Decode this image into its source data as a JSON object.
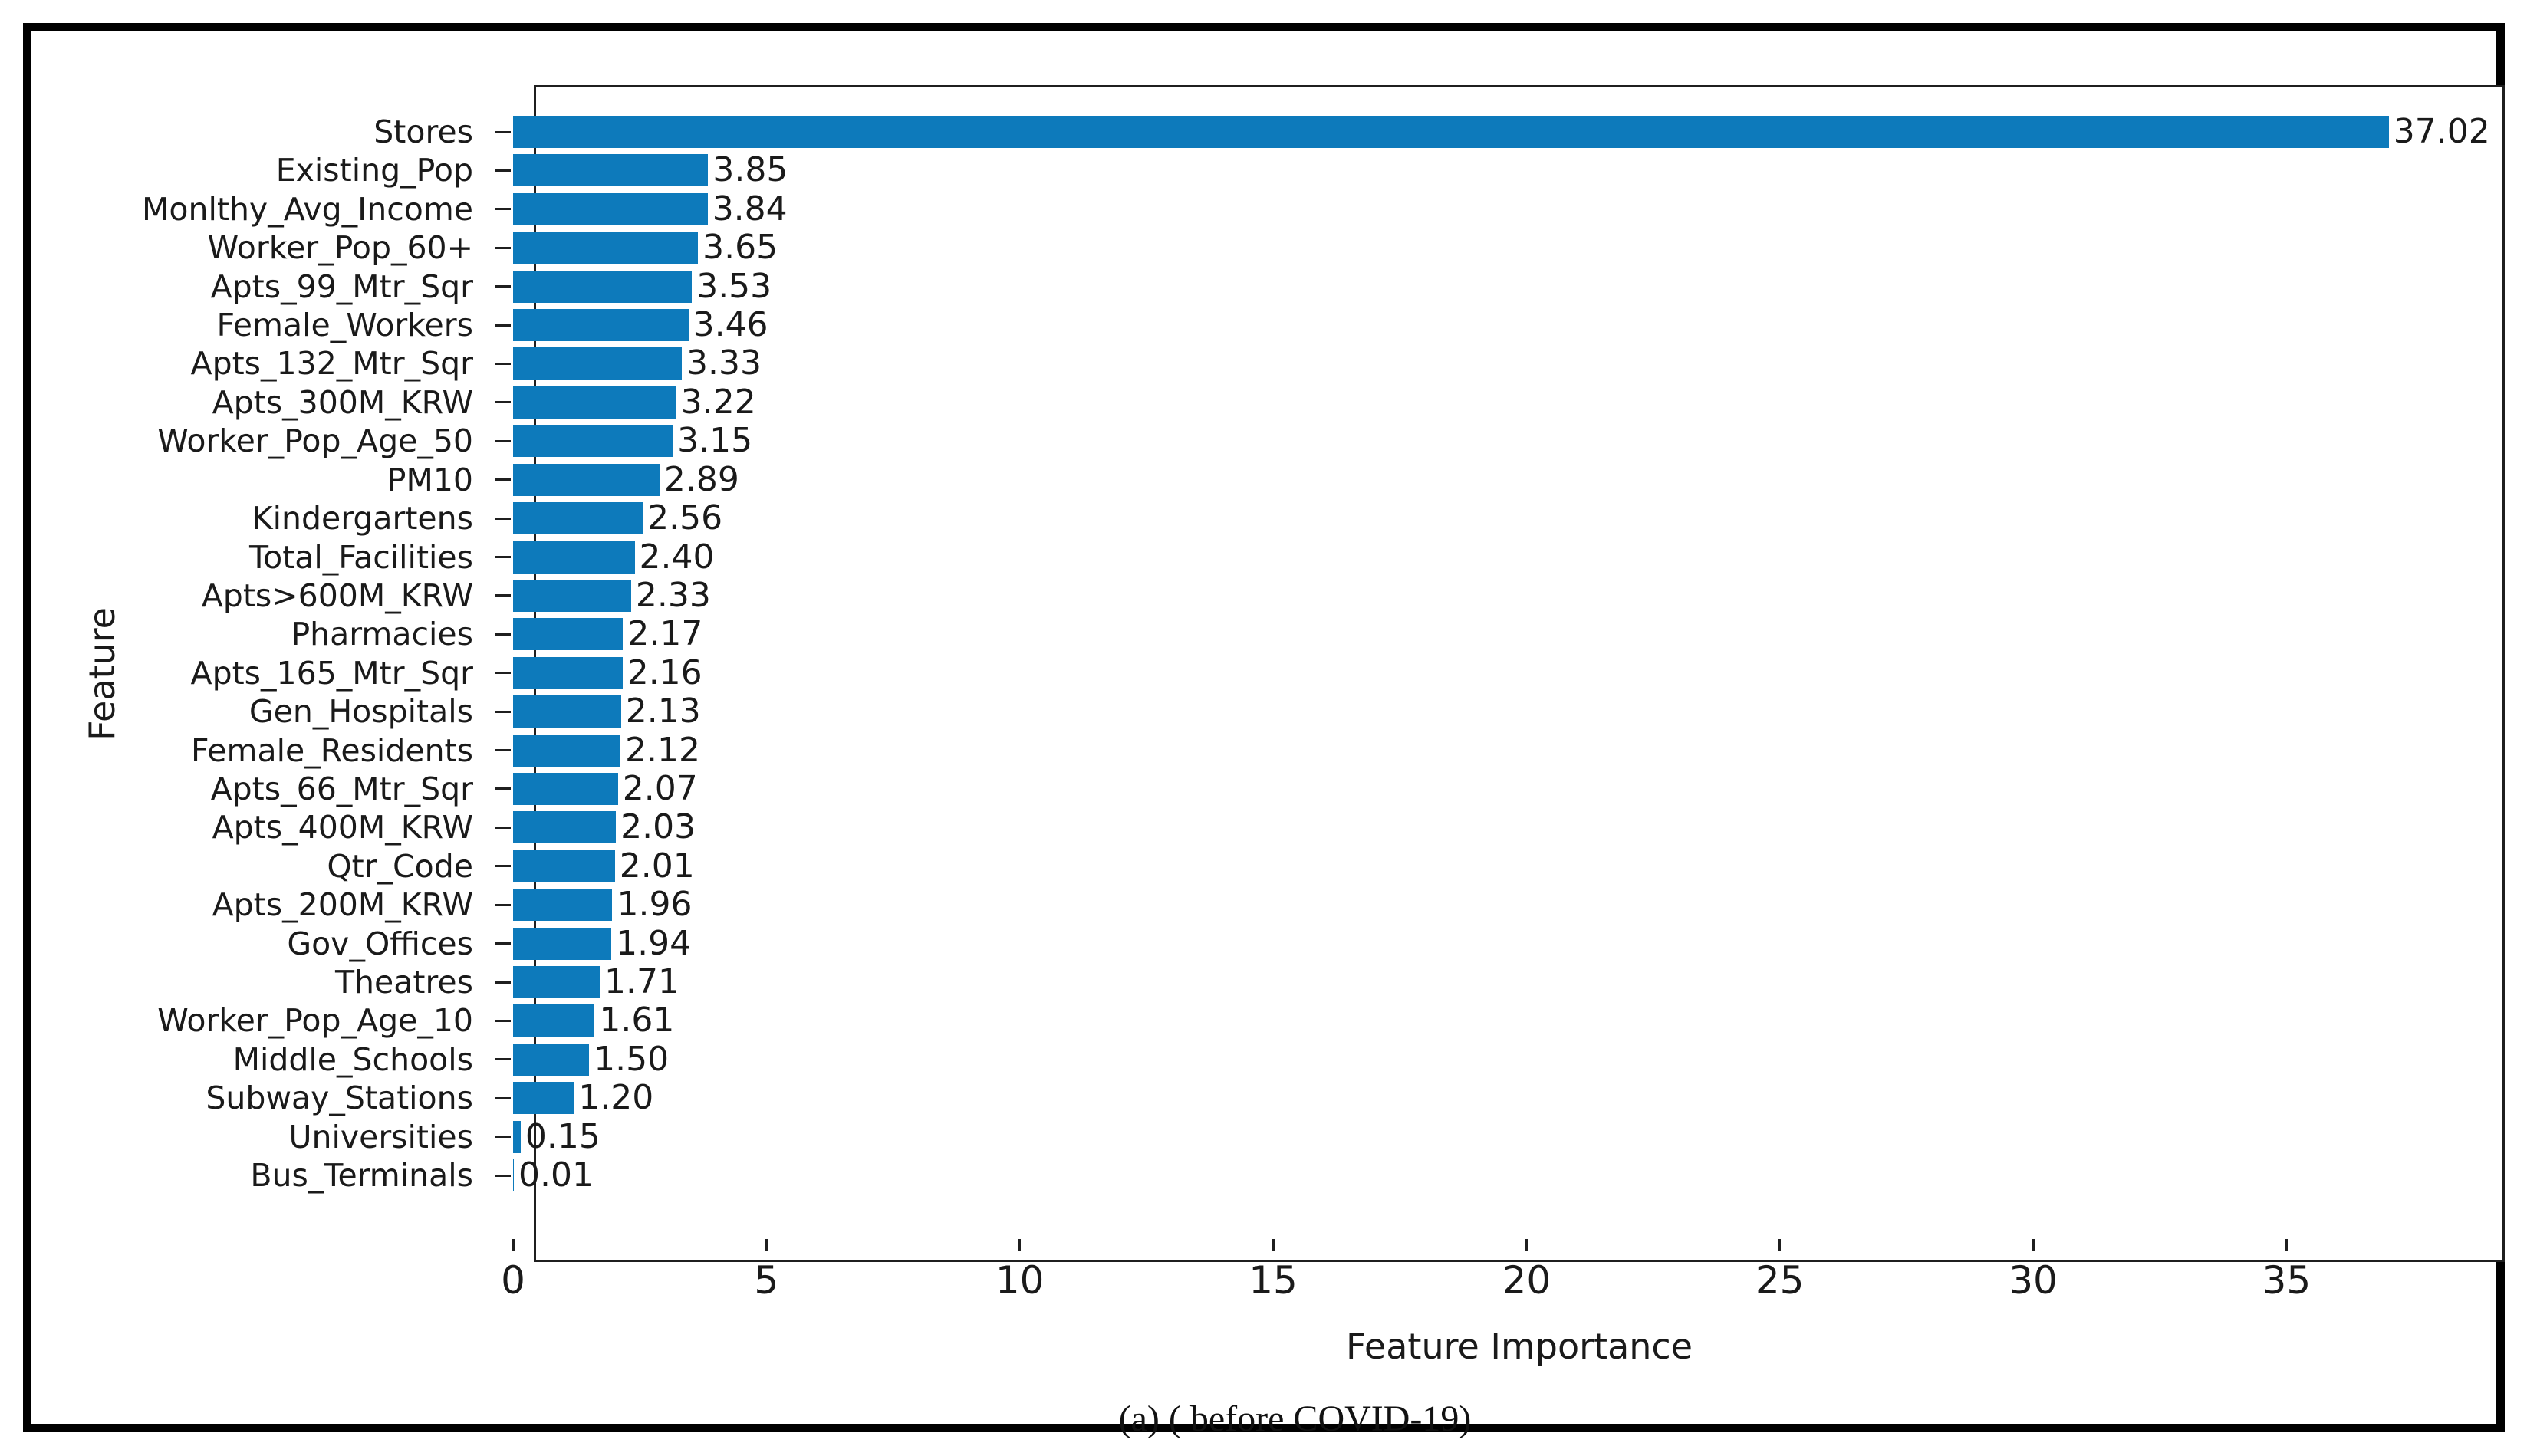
{
  "chart_data": {
    "type": "bar",
    "orientation": "horizontal",
    "title": "",
    "xlabel": "Feature Importance",
    "ylabel": "Feature",
    "caption": "(a) ( before COVID-19)",
    "categories": [
      "Stores",
      "Existing_Pop",
      "Monlthy_Avg_Income",
      "Worker_Pop_60+",
      "Apts_99_Mtr_Sqr",
      "Female_Workers",
      "Apts_132_Mtr_Sqr",
      "Apts_300M_KRW",
      "Worker_Pop_Age_50",
      "PM10",
      "Kindergartens",
      "Total_Facilities",
      "Apts>600M_KRW",
      "Pharmacies",
      "Apts_165_Mtr_Sqr",
      "Gen_Hospitals",
      "Female_Residents",
      "Apts_66_Mtr_Sqr",
      "Apts_400M_KRW",
      "Qtr_Code",
      "Apts_200M_KRW",
      "Gov_Offices",
      "Theatres",
      "Worker_Pop_Age_10",
      "Middle_Schools",
      "Subway_Stations",
      "Universities",
      "Bus_Terminals"
    ],
    "values": [
      37.02,
      3.85,
      3.84,
      3.65,
      3.53,
      3.46,
      3.33,
      3.22,
      3.15,
      2.89,
      2.56,
      2.4,
      2.33,
      2.17,
      2.16,
      2.13,
      2.12,
      2.07,
      2.03,
      2.01,
      1.96,
      1.94,
      1.71,
      1.61,
      1.5,
      1.2,
      0.15,
      0.01
    ],
    "value_labels": [
      "37.02",
      "3.85",
      "3.84",
      "3.65",
      "3.53",
      "3.46",
      "3.33",
      "3.22",
      "3.15",
      "2.89",
      "2.56",
      "2.40",
      "2.33",
      "2.17",
      "2.16",
      "2.13",
      "2.12",
      "2.07",
      "2.03",
      "2.01",
      "1.96",
      "1.94",
      "1.71",
      "1.61",
      "1.50",
      "1.20",
      "0.15",
      "0.01"
    ],
    "x_ticks": [
      "0",
      "5",
      "10",
      "15",
      "20",
      "25",
      "30",
      "35"
    ],
    "xlim": [
      0,
      38.9
    ],
    "grid": false,
    "legend": null,
    "bar_color": "#0d7abb",
    "axis_color": "#1f1f1f",
    "text_color": "#1a1a1a"
  }
}
